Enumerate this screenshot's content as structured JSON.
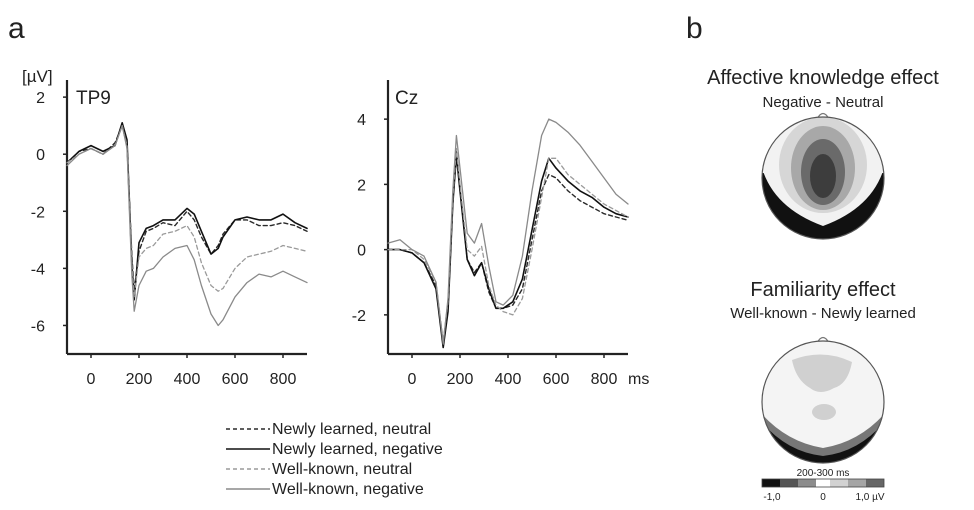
{
  "panel_labels": {
    "a": "a",
    "b": "b"
  },
  "colors": {
    "newly_neutral": "#2a2a2a",
    "newly_negative": "#111111",
    "well_neutral": "#9a9a9a",
    "well_negative": "#8a8a8a",
    "topo_neg_strong": "#111111",
    "topo_neg_mid": "#555555",
    "topo_neg_light": "#8c8c8c",
    "topo_zero": "#ffffff",
    "topo_pos_light": "#d2d2d2",
    "topo_pos_mid": "#a5a5a5",
    "topo_pos_strong": "#666666"
  },
  "legend": [
    {
      "label": "Newly learned, neutral",
      "style": "dashed",
      "color_key": "newly_neutral"
    },
    {
      "label": "Newly learned, negative",
      "style": "solid",
      "color_key": "newly_negative"
    },
    {
      "label": "Well-known, neutral",
      "style": "dashed",
      "color_key": "well_neutral"
    },
    {
      "label": "Well-known, negative",
      "style": "solid",
      "color_key": "well_negative"
    }
  ],
  "chart_data": [
    {
      "type": "line",
      "channel": "TP9",
      "ylabel": "[µV]",
      "xlim": [
        -100,
        900
      ],
      "ylim": [
        -7,
        2.6
      ],
      "xticks": [
        0,
        200,
        400,
        600,
        800
      ],
      "yticks": [
        2,
        0,
        -2,
        -4,
        -6
      ],
      "x": [
        -100,
        -50,
        0,
        50,
        100,
        130,
        150,
        170,
        180,
        200,
        230,
        260,
        300,
        350,
        400,
        430,
        460,
        500,
        530,
        550,
        600,
        650,
        700,
        750,
        800,
        850,
        900
      ],
      "series": [
        {
          "name": "Newly learned, neutral",
          "values": [
            -0.3,
            0.1,
            0.2,
            0.0,
            0.4,
            1.0,
            0.3,
            -3.5,
            -4.8,
            -3.4,
            -2.7,
            -2.6,
            -2.4,
            -2.5,
            -2.0,
            -2.3,
            -2.9,
            -3.5,
            -3.2,
            -2.8,
            -2.3,
            -2.3,
            -2.5,
            -2.5,
            -2.4,
            -2.5,
            -2.7
          ]
        },
        {
          "name": "Newly learned, negative",
          "values": [
            -0.3,
            0.1,
            0.3,
            0.1,
            0.3,
            1.1,
            0.5,
            -3.8,
            -5.1,
            -3.1,
            -2.6,
            -2.5,
            -2.3,
            -2.3,
            -1.9,
            -2.1,
            -2.7,
            -3.5,
            -3.3,
            -2.9,
            -2.3,
            -2.2,
            -2.3,
            -2.3,
            -2.1,
            -2.4,
            -2.6
          ]
        },
        {
          "name": "Well-known, neutral",
          "values": [
            -0.3,
            0.0,
            0.2,
            0.0,
            0.3,
            1.0,
            0.3,
            -3.8,
            -5.0,
            -3.6,
            -3.3,
            -3.2,
            -2.8,
            -2.7,
            -2.5,
            -2.9,
            -3.8,
            -4.6,
            -4.8,
            -4.7,
            -4.0,
            -3.6,
            -3.5,
            -3.4,
            -3.2,
            -3.3,
            -3.4
          ]
        },
        {
          "name": "Well-known, negative",
          "values": [
            -0.4,
            0.0,
            0.2,
            0.0,
            0.3,
            1.0,
            0.2,
            -4.2,
            -5.5,
            -4.6,
            -4.1,
            -4.0,
            -3.6,
            -3.3,
            -3.2,
            -3.7,
            -4.6,
            -5.6,
            -6.0,
            -5.8,
            -5.0,
            -4.5,
            -4.2,
            -4.3,
            -4.1,
            -4.3,
            -4.5
          ]
        }
      ]
    },
    {
      "type": "line",
      "channel": "Cz",
      "xunit": "ms",
      "xlim": [
        -100,
        900
      ],
      "ylim": [
        -3.2,
        5.2
      ],
      "xticks": [
        0,
        200,
        400,
        600,
        800
      ],
      "yticks": [
        4,
        2,
        0,
        -2
      ],
      "x": [
        -100,
        -50,
        0,
        50,
        100,
        130,
        150,
        170,
        185,
        200,
        230,
        260,
        290,
        320,
        350,
        380,
        420,
        460,
        500,
        540,
        570,
        600,
        650,
        700,
        750,
        800,
        850,
        900
      ],
      "series": [
        {
          "name": "Newly learned, neutral",
          "values": [
            0.0,
            0.0,
            -0.1,
            -0.4,
            -1.1,
            -2.9,
            -1.8,
            1.5,
            3.0,
            1.9,
            -0.3,
            -0.7,
            -0.4,
            -1.3,
            -1.8,
            -1.8,
            -1.7,
            -1.2,
            0.3,
            1.8,
            2.3,
            2.2,
            1.8,
            1.5,
            1.3,
            1.1,
            1.0,
            0.9
          ]
        },
        {
          "name": "Newly learned, negative",
          "values": [
            0.0,
            0.0,
            -0.1,
            -0.4,
            -1.2,
            -3.0,
            -1.9,
            1.4,
            2.9,
            1.8,
            -0.3,
            -0.8,
            -0.4,
            -1.2,
            -1.8,
            -1.8,
            -1.6,
            -0.9,
            0.6,
            2.1,
            2.8,
            2.5,
            2.1,
            1.8,
            1.6,
            1.3,
            1.1,
            1.0
          ]
        },
        {
          "name": "Well-known, neutral",
          "values": [
            0.0,
            0.0,
            0.0,
            -0.3,
            -1.0,
            -2.8,
            -1.6,
            1.6,
            3.1,
            2.0,
            0.0,
            -0.2,
            0.1,
            -1.1,
            -1.7,
            -1.9,
            -2.0,
            -1.5,
            0.0,
            1.6,
            2.8,
            2.8,
            2.3,
            2.0,
            1.7,
            1.4,
            1.2,
            1.0
          ]
        },
        {
          "name": "Well-known, negative",
          "values": [
            0.2,
            0.3,
            0.0,
            -0.2,
            -1.0,
            -2.9,
            -1.5,
            1.8,
            3.5,
            2.5,
            0.5,
            0.2,
            0.8,
            -0.5,
            -1.6,
            -1.7,
            -1.4,
            -0.2,
            1.8,
            3.5,
            4.0,
            3.9,
            3.6,
            3.2,
            2.7,
            2.2,
            1.7,
            1.4
          ]
        }
      ]
    }
  ],
  "topomaps": [
    {
      "title": "Affective knowledge effect",
      "subtitle": "Negative - Neutral",
      "window": "200-300 ms"
    },
    {
      "title": "Familiarity effect",
      "subtitle": "Well-known - Newly learned"
    }
  ],
  "colorbar": {
    "window": "200-300 ms",
    "ticks": [
      "-1,0",
      "0",
      "1,0 µV"
    ],
    "range": [
      -1.0,
      1.0
    ]
  }
}
